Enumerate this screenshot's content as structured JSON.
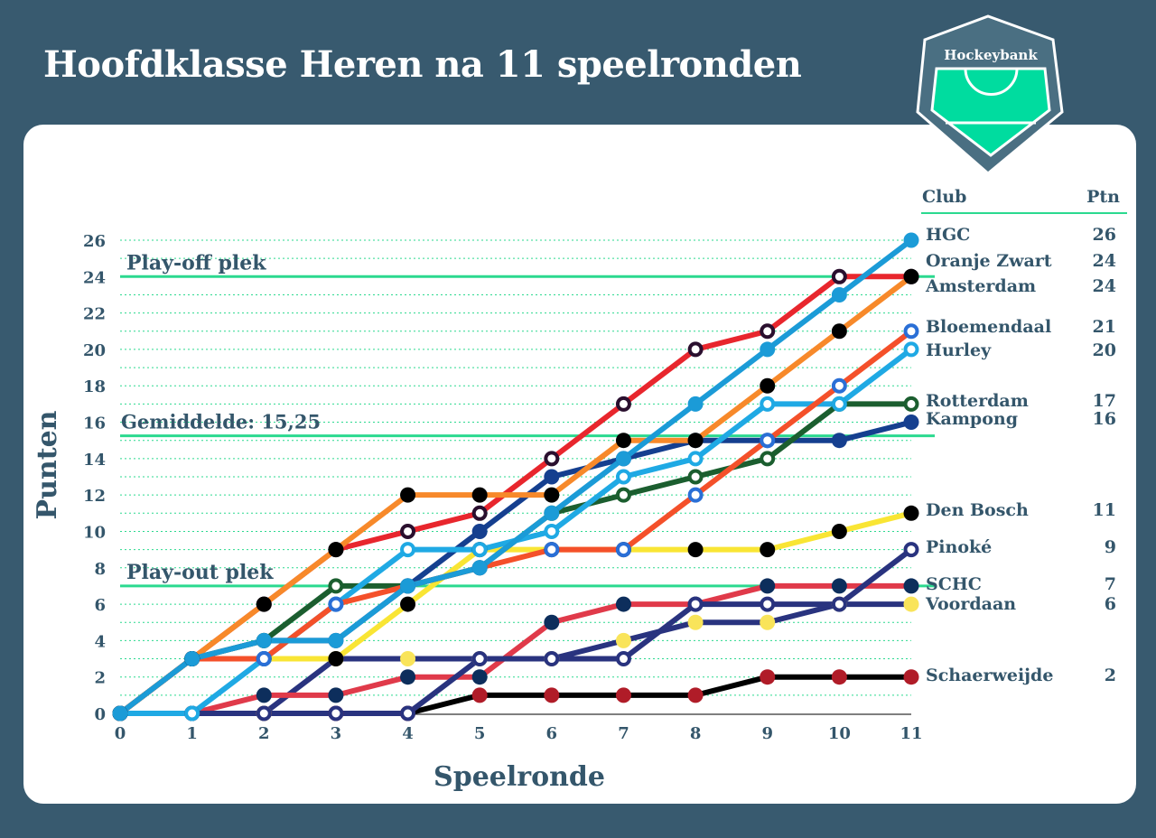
{
  "title": "Hoofdklasse Heren na 11 speelronden",
  "logo_text": "Hockeybank",
  "legend": {
    "club_header": "Club",
    "points_header": "Ptn"
  },
  "colors": {
    "background": "#385a6f",
    "accent": "#2bd98f",
    "text": "#34566b"
  },
  "chart_data": {
    "type": "line",
    "title": "Hoofdklasse Heren na 11 speelronden",
    "xlabel": "Speelronde",
    "ylabel": "Punten",
    "x": [
      0,
      1,
      2,
      3,
      4,
      5,
      6,
      7,
      8,
      9,
      10,
      11
    ],
    "xlim": [
      0,
      11
    ],
    "ylim": [
      0,
      26
    ],
    "yticks": [
      0,
      2,
      4,
      6,
      8,
      10,
      12,
      14,
      16,
      18,
      20,
      22,
      24,
      26
    ],
    "grid": "horizontal dotted",
    "legend_placement": "right",
    "reference_lines": [
      {
        "label": "Play-off plek",
        "value": 24
      },
      {
        "label": "Gemiddelde: 15,25",
        "value": 15.25
      },
      {
        "label": "Play-out plek",
        "value": 7
      }
    ],
    "series": [
      {
        "name": "HGC",
        "points": 26,
        "line": "#1b9bd7",
        "marker": "filled",
        "marker_color": "#1b9bd7",
        "values": [
          0,
          3,
          4,
          4,
          7,
          8,
          11,
          14,
          17,
          20,
          23,
          26
        ]
      },
      {
        "name": "Oranje Zwart",
        "points": 24,
        "line": "#f7892a",
        "marker": "filled",
        "marker_color": "#000000",
        "values": [
          0,
          3,
          6,
          9,
          12,
          12,
          12,
          15,
          15,
          18,
          21,
          24
        ]
      },
      {
        "name": "Amsterdam",
        "points": 24,
        "line": "#e8262d",
        "marker": "ring",
        "marker_color": "#2a0f2e",
        "values": [
          0,
          3,
          6,
          9,
          10,
          11,
          14,
          17,
          20,
          21,
          24,
          24
        ]
      },
      {
        "name": "Bloemendaal",
        "points": 21,
        "line": "#f4502a",
        "marker": "ring",
        "marker_color": "#2a6fd6",
        "values": [
          0,
          3,
          3,
          6,
          7,
          8,
          9,
          9,
          12,
          15,
          18,
          21
        ]
      },
      {
        "name": "Hurley",
        "points": 20,
        "line": "#1fa9e4",
        "marker": "ring",
        "marker_color": "#1fa9e4",
        "values": [
          0,
          0,
          3,
          6,
          9,
          9,
          10,
          13,
          14,
          17,
          17,
          20
        ]
      },
      {
        "name": "Rotterdam",
        "points": 17,
        "line": "#1b5e2f",
        "marker": "ring",
        "marker_color": "#1b5e2f",
        "values": [
          0,
          3,
          4,
          7,
          7,
          8,
          11,
          12,
          13,
          14,
          17,
          17
        ]
      },
      {
        "name": "Kampong",
        "points": 16,
        "line": "#153f8f",
        "marker": "filled",
        "marker_color": "#153f8f",
        "values": [
          0,
          3,
          4,
          4,
          7,
          10,
          13,
          14,
          15,
          15,
          15,
          16
        ]
      },
      {
        "name": "Den Bosch",
        "points": 11,
        "line": "#f9e534",
        "marker": "filled",
        "marker_color": "#000000",
        "values": [
          0,
          3,
          3,
          3,
          6,
          9,
          9,
          9,
          9,
          9,
          10,
          11
        ]
      },
      {
        "name": "Pinoké",
        "points": 9,
        "line": "#29337f",
        "marker": "ring",
        "marker_color": "#29337f",
        "values": [
          0,
          0,
          0,
          0,
          0,
          3,
          3,
          3,
          6,
          6,
          6,
          9
        ]
      },
      {
        "name": "SCHC",
        "points": 7,
        "line": "#e03a4a",
        "marker": "filled",
        "marker_color": "#0d2e5c",
        "values": [
          0,
          0,
          1,
          1,
          2,
          2,
          5,
          6,
          6,
          7,
          7,
          7
        ]
      },
      {
        "name": "Voordaan",
        "points": 6,
        "line": "#29337f",
        "marker": "filled",
        "marker_color": "#f9e45a",
        "values": [
          0,
          0,
          0,
          3,
          3,
          3,
          3,
          4,
          5,
          5,
          6,
          6
        ]
      },
      {
        "name": "Schaerweijde",
        "points": 2,
        "line": "#000000",
        "marker": "filled",
        "marker_color": "#b01c28",
        "values": [
          0,
          0,
          0,
          0,
          0,
          1,
          1,
          1,
          1,
          2,
          2,
          2
        ]
      }
    ]
  }
}
